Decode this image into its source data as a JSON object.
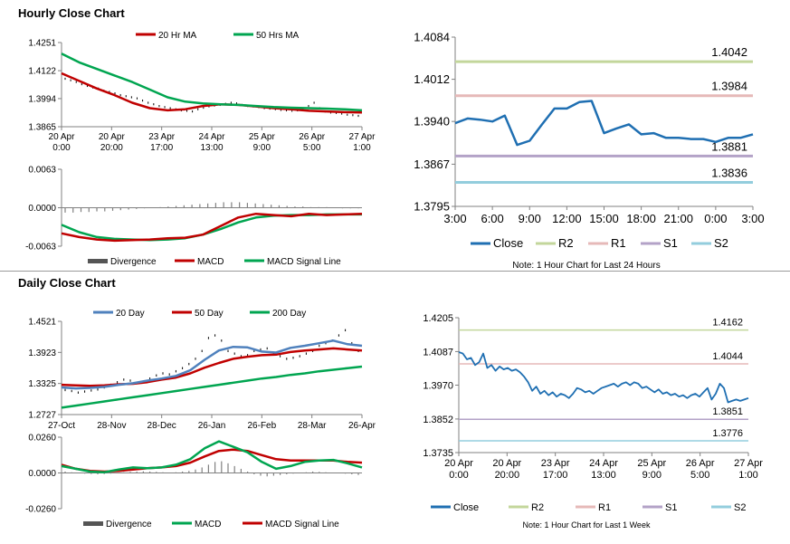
{
  "sections": {
    "hourly_title": "Hourly Close Chart",
    "daily_title": "Daily Close Chart"
  },
  "colors": {
    "ma_red": "#c00000",
    "ma_green": "#00a550",
    "close_blue": "#1f6fb2",
    "macd_blue": "#4f81bd",
    "r2": "#c3d69b",
    "r1": "#e6b9b8",
    "s1": "#b3a2c7",
    "s2": "#93cddd",
    "bar": "#000000",
    "divergence": "#808080"
  },
  "chart_data": [
    {
      "id": "hourly_ma",
      "type": "line",
      "title": "",
      "xlabel": "",
      "ylabel": "",
      "x_tick_labels": [
        [
          "20 Apr",
          "0:00"
        ],
        [
          "20 Apr",
          "20:00"
        ],
        [
          "23 Apr",
          "17:00"
        ],
        [
          "24 Apr",
          "13:00"
        ],
        [
          "25 Apr",
          "9:00"
        ],
        [
          "26 Apr",
          "5:00"
        ],
        [
          "27 Apr",
          "1:00"
        ]
      ],
      "y_tick_labels": [
        "1.4251",
        "1.4122",
        "1.3994",
        "1.3865"
      ],
      "ylim": [
        1.3865,
        1.4251
      ],
      "legend": [
        "20 Hr MA",
        "50 Hrs MA"
      ],
      "price_bars": [
        1.4085,
        1.4078,
        1.407,
        1.406,
        1.4052,
        1.4045,
        1.404,
        1.403,
        1.4025,
        1.4018,
        1.401,
        1.4005,
        1.4,
        1.3995,
        1.3985,
        1.3975,
        1.3968,
        1.396,
        1.3955,
        1.395,
        1.3945,
        1.394,
        1.3938,
        1.3935,
        1.3945,
        1.3952,
        1.3958,
        1.3962,
        1.3965,
        1.397,
        1.3975,
        1.3972,
        1.3965,
        1.396,
        1.3958,
        1.3955,
        1.395,
        1.3948,
        1.3945,
        1.3942,
        1.394,
        1.3938,
        1.394,
        1.3945,
        1.396,
        1.3975,
        1.395,
        1.3935,
        1.393,
        1.3928,
        1.3925,
        1.392,
        1.3918,
        1.3915
      ],
      "series": [
        {
          "name": "20 Hr MA",
          "values": [
            1.411,
            1.4075,
            1.404,
            1.401,
            1.3975,
            1.395,
            1.394,
            1.3945,
            1.396,
            1.3968,
            1.3965,
            1.3958,
            1.395,
            1.3945,
            1.3938,
            1.3935,
            1.3932,
            1.393
          ]
        },
        {
          "name": "50 Hrs MA",
          "values": [
            1.42,
            1.416,
            1.413,
            1.41,
            1.407,
            1.4035,
            1.4,
            1.398,
            1.3972,
            1.3968,
            1.3965,
            1.396,
            1.3955,
            1.3952,
            1.395,
            1.3948,
            1.3945,
            1.394
          ]
        }
      ]
    },
    {
      "id": "hourly_macd",
      "type": "line",
      "y_tick_labels": [
        "0.0063",
        "0.0000",
        "-0.0063"
      ],
      "ylim": [
        -0.0063,
        0.0063
      ],
      "legend": [
        "Divergence",
        "MACD",
        "MACD Signal Line"
      ],
      "divergence": [
        -0.0008,
        -0.0008,
        -0.0007,
        -0.0007,
        -0.0006,
        -0.0006,
        -0.0005,
        -0.0004,
        -0.0003,
        -0.0002,
        -0.0001,
        0.0,
        0.0001,
        0.0002,
        0.0003,
        0.0004,
        0.0005,
        0.0006,
        0.0007,
        0.0008,
        0.0009,
        0.0009,
        0.0009,
        0.0008,
        0.0007,
        0.0006,
        0.0005,
        0.0004,
        0.0003,
        0.0002,
        0.0002,
        0.0001,
        0.0001,
        0.0001,
        0.0,
        -0.0001,
        -0.0001,
        -0.0001
      ],
      "series": [
        {
          "name": "MACD",
          "values": [
            -0.0042,
            -0.0048,
            -0.0052,
            -0.0054,
            -0.0053,
            -0.0052,
            -0.005,
            -0.0049,
            -0.0044,
            -0.003,
            -0.0016,
            -0.001,
            -0.0012,
            -0.0014,
            -0.001,
            -0.0012,
            -0.0011,
            -0.001
          ]
        },
        {
          "name": "MACD Signal Line",
          "values": [
            -0.0028,
            -0.004,
            -0.0048,
            -0.0051,
            -0.0052,
            -0.0053,
            -0.0052,
            -0.005,
            -0.0044,
            -0.0035,
            -0.0024,
            -0.0016,
            -0.0013,
            -0.0012,
            -0.0012,
            -0.0011,
            -0.0011,
            -0.0011
          ]
        }
      ]
    },
    {
      "id": "hourly_close",
      "type": "line",
      "x_tick_labels": [
        "3:00",
        "6:00",
        "9:00",
        "12:00",
        "15:00",
        "18:00",
        "21:00",
        "0:00",
        "3:00"
      ],
      "y_tick_labels": [
        "1.4084",
        "1.4012",
        "1.3940",
        "1.3867",
        "1.3795"
      ],
      "ylim": [
        1.3795,
        1.4084
      ],
      "legend": [
        "Close",
        "R2",
        "R1",
        "S1",
        "S2"
      ],
      "note": "Note: 1 Hour Chart for Last 24 Hours",
      "levels": [
        {
          "name": "R2",
          "value": 1.4042,
          "label": "1.4042"
        },
        {
          "name": "R1",
          "value": 1.3984,
          "label": "1.3984"
        },
        {
          "name": "S1",
          "value": 1.3881,
          "label": "1.3881"
        },
        {
          "name": "S2",
          "value": 1.3836,
          "label": "1.3836"
        }
      ],
      "values": [
        1.3937,
        1.3945,
        1.3943,
        1.394,
        1.395,
        1.39,
        1.3907,
        1.3935,
        1.3962,
        1.3962,
        1.3973,
        1.3975,
        1.392,
        1.3928,
        1.3935,
        1.3918,
        1.392,
        1.3912,
        1.3912,
        1.391,
        1.391,
        1.3905,
        1.3912,
        1.3912,
        1.3918
      ]
    },
    {
      "id": "daily_ma",
      "type": "line",
      "x_tick_labels": [
        "27-Oct",
        "28-Nov",
        "28-Dec",
        "26-Jan",
        "26-Feb",
        "28-Mar",
        "26-Apr"
      ],
      "y_tick_labels": [
        "1.4521",
        "1.3923",
        "1.3325",
        "1.2727"
      ],
      "ylim": [
        1.2727,
        1.4521
      ],
      "legend": [
        "20 Day",
        "50 Day",
        "200 Day"
      ],
      "price_bars": [
        1.32,
        1.318,
        1.315,
        1.317,
        1.319,
        1.321,
        1.325,
        1.33,
        1.335,
        1.34,
        1.338,
        1.334,
        1.336,
        1.342,
        1.348,
        1.352,
        1.35,
        1.356,
        1.362,
        1.37,
        1.38,
        1.395,
        1.42,
        1.425,
        1.415,
        1.395,
        1.39,
        1.385,
        1.387,
        1.395,
        1.398,
        1.4,
        1.39,
        1.385,
        1.38,
        1.382,
        1.385,
        1.39,
        1.395,
        1.405,
        1.41,
        1.415,
        1.425,
        1.435,
        1.41,
        1.395
      ],
      "series": [
        {
          "name": "20 Day",
          "values": [
            1.325,
            1.323,
            1.324,
            1.326,
            1.33,
            1.333,
            1.338,
            1.342,
            1.347,
            1.358,
            1.378,
            1.396,
            1.403,
            1.402,
            1.394,
            1.392,
            1.401,
            1.405,
            1.41,
            1.415,
            1.408,
            1.405
          ]
        },
        {
          "name": "50 Day",
          "values": [
            1.33,
            1.329,
            1.328,
            1.329,
            1.331,
            1.332,
            1.335,
            1.34,
            1.344,
            1.352,
            1.363,
            1.372,
            1.38,
            1.384,
            1.387,
            1.388,
            1.393,
            1.396,
            1.398,
            1.4,
            1.398,
            1.396
          ]
        },
        {
          "name": "200 Day",
          "values": [
            1.286,
            1.29,
            1.294,
            1.298,
            1.302,
            1.306,
            1.31,
            1.314,
            1.318,
            1.322,
            1.326,
            1.33,
            1.334,
            1.338,
            1.342,
            1.345,
            1.349,
            1.352,
            1.356,
            1.359,
            1.362,
            1.365
          ]
        }
      ]
    },
    {
      "id": "daily_macd",
      "type": "line",
      "y_tick_labels": [
        "0.0260",
        "0.0000",
        "-0.0260"
      ],
      "ylim": [
        -0.026,
        0.026
      ],
      "legend": [
        "Divergence",
        "MACD",
        "MACD Signal Line"
      ],
      "divergence": [
        0.001,
        0.0005,
        0.0,
        -0.0005,
        -0.0008,
        -0.001,
        -0.0008,
        -0.0005,
        0.0,
        0.0005,
        0.0008,
        0.001,
        0.0012,
        0.001,
        0.0008,
        0.0005,
        0.0003,
        0.0005,
        0.001,
        0.0015,
        0.0025,
        0.004,
        0.006,
        0.008,
        0.0085,
        0.007,
        0.005,
        0.003,
        0.001,
        -0.001,
        -0.002,
        -0.0025,
        -0.002,
        -0.0015,
        -0.001,
        -0.0005,
        0.0,
        0.0005,
        0.001,
        0.0008,
        0.0005,
        0.0003,
        0.0,
        -0.0005,
        -0.001,
        -0.0015
      ],
      "series": [
        {
          "name": "MACD",
          "values": [
            0.005,
            0.003,
            0.001,
            0.0005,
            0.0025,
            0.004,
            0.0035,
            0.004,
            0.006,
            0.01,
            0.018,
            0.023,
            0.019,
            0.015,
            0.008,
            0.003,
            0.005,
            0.008,
            0.009,
            0.0095,
            0.007,
            0.004
          ]
        },
        {
          "name": "MACD Signal Line",
          "values": [
            0.006,
            0.003,
            0.0015,
            0.001,
            0.0015,
            0.0025,
            0.0035,
            0.004,
            0.005,
            0.0075,
            0.012,
            0.016,
            0.017,
            0.016,
            0.013,
            0.01,
            0.009,
            0.009,
            0.009,
            0.009,
            0.008,
            0.0075
          ]
        }
      ]
    },
    {
      "id": "daily_close",
      "type": "line",
      "x_tick_labels": [
        [
          "20 Apr",
          "0:00"
        ],
        [
          "20 Apr",
          "20:00"
        ],
        [
          "23 Apr",
          "17:00"
        ],
        [
          "24 Apr",
          "13:00"
        ],
        [
          "25 Apr",
          "9:00"
        ],
        [
          "26 Apr",
          "5:00"
        ],
        [
          "27 Apr",
          "1:00"
        ]
      ],
      "y_tick_labels": [
        "1.4205",
        "1.4087",
        "1.3970",
        "1.3852",
        "1.3735"
      ],
      "ylim": [
        1.3735,
        1.4205
      ],
      "legend": [
        "Close",
        "R2",
        "R1",
        "S1",
        "S2"
      ],
      "note": "Note: 1 Hour Chart for Last 1 Week",
      "levels": [
        {
          "name": "R2",
          "value": 1.4162,
          "label": "1.4162"
        },
        {
          "name": "R1",
          "value": 1.4044,
          "label": "1.4044"
        },
        {
          "name": "S1",
          "value": 1.3851,
          "label": "1.3851"
        },
        {
          "name": "S2",
          "value": 1.3776,
          "label": "1.3776"
        }
      ],
      "values": [
        1.4085,
        1.408,
        1.406,
        1.4065,
        1.404,
        1.405,
        1.408,
        1.403,
        1.404,
        1.402,
        1.4035,
        1.4025,
        1.403,
        1.402,
        1.4025,
        1.4015,
        1.4,
        1.398,
        1.395,
        1.3965,
        1.394,
        1.395,
        1.3935,
        1.3945,
        1.393,
        1.394,
        1.3935,
        1.3925,
        1.394,
        1.396,
        1.3955,
        1.3945,
        1.395,
        1.394,
        1.395,
        1.396,
        1.3965,
        1.397,
        1.3975,
        1.3965,
        1.3975,
        1.398,
        1.397,
        1.398,
        1.3975,
        1.396,
        1.3965,
        1.3955,
        1.3945,
        1.3955,
        1.394,
        1.3945,
        1.3935,
        1.394,
        1.393,
        1.3935,
        1.3925,
        1.3935,
        1.394,
        1.393,
        1.3945,
        1.396,
        1.392,
        1.394,
        1.3975,
        1.396,
        1.391,
        1.3915,
        1.392,
        1.3915,
        1.392,
        1.3925
      ]
    }
  ]
}
